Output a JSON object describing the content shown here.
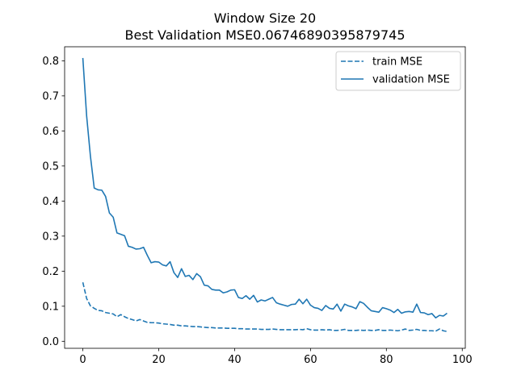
{
  "chart_data": {
    "type": "line",
    "title": "Window Size 20",
    "subtitle": "Best Validation MSE0.06746890395879745",
    "xlabel": "",
    "ylabel": "",
    "xlim": [
      -4.8,
      100.8
    ],
    "ylim": [
      -0.02,
      0.84
    ],
    "xticks": [
      0,
      20,
      40,
      60,
      80,
      100
    ],
    "yticks": [
      0.0,
      0.1,
      0.2,
      0.3,
      0.4,
      0.5,
      0.6,
      0.7,
      0.8
    ],
    "grid": false,
    "legend_position": "top-right",
    "x": [
      0,
      1,
      2,
      3,
      4,
      5,
      6,
      7,
      8,
      9,
      10,
      11,
      12,
      13,
      14,
      15,
      16,
      17,
      18,
      19,
      20,
      21,
      22,
      23,
      24,
      25,
      26,
      27,
      28,
      29,
      30,
      31,
      32,
      33,
      34,
      35,
      36,
      37,
      38,
      39,
      40,
      41,
      42,
      43,
      44,
      45,
      46,
      47,
      48,
      49,
      50,
      51,
      52,
      53,
      54,
      55,
      56,
      57,
      58,
      59,
      60,
      61,
      62,
      63,
      64,
      65,
      66,
      67,
      68,
      69,
      70,
      71,
      72,
      73,
      74,
      75,
      76,
      77,
      78,
      79,
      80,
      81,
      82,
      83,
      84,
      85,
      86,
      87,
      88,
      89,
      90,
      91,
      92,
      93,
      94,
      95,
      96
    ],
    "series": [
      {
        "name": "train MSE",
        "style": "dashed",
        "color": "#1f77b4",
        "values": [
          0.168,
          0.122,
          0.101,
          0.094,
          0.088,
          0.087,
          0.082,
          0.08,
          0.078,
          0.07,
          0.076,
          0.07,
          0.065,
          0.062,
          0.058,
          0.062,
          0.058,
          0.054,
          0.053,
          0.053,
          0.052,
          0.05,
          0.049,
          0.048,
          0.046,
          0.046,
          0.044,
          0.044,
          0.043,
          0.042,
          0.042,
          0.041,
          0.04,
          0.039,
          0.039,
          0.038,
          0.038,
          0.038,
          0.037,
          0.037,
          0.037,
          0.036,
          0.036,
          0.035,
          0.035,
          0.035,
          0.035,
          0.034,
          0.034,
          0.034,
          0.035,
          0.034,
          0.033,
          0.033,
          0.033,
          0.033,
          0.033,
          0.034,
          0.033,
          0.036,
          0.033,
          0.032,
          0.032,
          0.033,
          0.032,
          0.033,
          0.031,
          0.031,
          0.032,
          0.034,
          0.031,
          0.031,
          0.031,
          0.032,
          0.031,
          0.032,
          0.031,
          0.031,
          0.033,
          0.031,
          0.031,
          0.032,
          0.031,
          0.03,
          0.032,
          0.035,
          0.031,
          0.032,
          0.034,
          0.031,
          0.031,
          0.03,
          0.03,
          0.029,
          0.035,
          0.03,
          0.028
        ]
      },
      {
        "name": "validation MSE",
        "style": "solid",
        "color": "#1f77b4",
        "values": [
          0.808,
          0.643,
          0.528,
          0.437,
          0.432,
          0.431,
          0.413,
          0.366,
          0.354,
          0.309,
          0.305,
          0.301,
          0.271,
          0.268,
          0.263,
          0.264,
          0.268,
          0.245,
          0.224,
          0.227,
          0.226,
          0.218,
          0.215,
          0.227,
          0.196,
          0.182,
          0.207,
          0.185,
          0.188,
          0.176,
          0.193,
          0.184,
          0.16,
          0.158,
          0.148,
          0.146,
          0.146,
          0.138,
          0.141,
          0.146,
          0.147,
          0.125,
          0.122,
          0.13,
          0.12,
          0.131,
          0.112,
          0.118,
          0.115,
          0.12,
          0.125,
          0.11,
          0.106,
          0.103,
          0.1,
          0.105,
          0.106,
          0.12,
          0.107,
          0.12,
          0.103,
          0.096,
          0.094,
          0.088,
          0.102,
          0.094,
          0.092,
          0.106,
          0.086,
          0.106,
          0.101,
          0.098,
          0.093,
          0.113,
          0.108,
          0.097,
          0.087,
          0.085,
          0.083,
          0.096,
          0.093,
          0.089,
          0.082,
          0.091,
          0.08,
          0.084,
          0.085,
          0.083,
          0.106,
          0.082,
          0.081,
          0.076,
          0.079,
          0.067,
          0.074,
          0.072,
          0.08
        ]
      }
    ]
  }
}
